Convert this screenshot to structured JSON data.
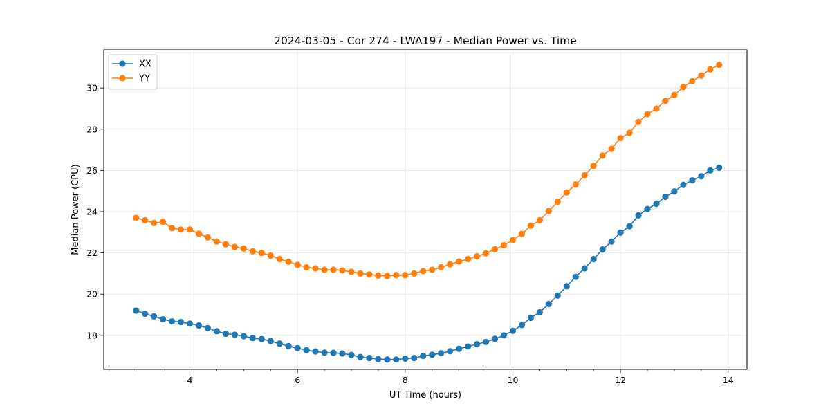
{
  "chart_data": {
    "type": "line",
    "title": "2024-03-05 - Cor 274 - LWA197 - Median Power vs. Time",
    "xlabel": "UT Time (hours)",
    "ylabel": "Median Power (CPU)",
    "xlim": [
      2.4,
      14.35
    ],
    "ylim": [
      16.35,
      31.85
    ],
    "xticks": [
      4,
      6,
      8,
      10,
      12,
      14
    ],
    "yticks": [
      18,
      20,
      22,
      24,
      26,
      28,
      30
    ],
    "grid": true,
    "legend_position": "top-left",
    "x": [
      3.0,
      3.167,
      3.333,
      3.5,
      3.667,
      3.833,
      4.0,
      4.167,
      4.333,
      4.5,
      4.667,
      4.833,
      5.0,
      5.167,
      5.333,
      5.5,
      5.667,
      5.833,
      6.0,
      6.167,
      6.333,
      6.5,
      6.667,
      6.833,
      7.0,
      7.167,
      7.333,
      7.5,
      7.667,
      7.833,
      8.0,
      8.167,
      8.333,
      8.5,
      8.667,
      8.833,
      9.0,
      9.167,
      9.333,
      9.5,
      9.667,
      9.833,
      10.0,
      10.167,
      10.333,
      10.5,
      10.667,
      10.833,
      11.0,
      11.167,
      11.333,
      11.5,
      11.667,
      11.833,
      12.0,
      12.167,
      12.333,
      12.5,
      12.667,
      12.833,
      13.0,
      13.167,
      13.333,
      13.5,
      13.667,
      13.833
    ],
    "series": [
      {
        "name": "XX",
        "color": "#1f77b4",
        "values": [
          19.2,
          19.05,
          18.92,
          18.78,
          18.68,
          18.65,
          18.57,
          18.48,
          18.35,
          18.2,
          18.08,
          18.03,
          17.96,
          17.87,
          17.82,
          17.72,
          17.6,
          17.48,
          17.38,
          17.28,
          17.22,
          17.16,
          17.15,
          17.12,
          17.05,
          16.95,
          16.9,
          16.85,
          16.83,
          16.83,
          16.87,
          16.9,
          17.0,
          17.06,
          17.13,
          17.23,
          17.35,
          17.46,
          17.57,
          17.68,
          17.83,
          18.0,
          18.22,
          18.5,
          18.85,
          19.12,
          19.52,
          19.93,
          20.38,
          20.84,
          21.25,
          21.7,
          22.17,
          22.55,
          22.98,
          23.29,
          23.82,
          24.13,
          24.38,
          24.72,
          24.98,
          25.3,
          25.52,
          25.72,
          26.0,
          26.13
        ]
      },
      {
        "name": "YY",
        "color": "#ff7f0e",
        "values": [
          23.7,
          23.58,
          23.45,
          23.5,
          23.2,
          23.13,
          23.13,
          22.93,
          22.75,
          22.55,
          22.42,
          22.29,
          22.21,
          22.08,
          22.0,
          21.87,
          21.7,
          21.57,
          21.42,
          21.3,
          21.25,
          21.18,
          21.18,
          21.15,
          21.08,
          21.0,
          20.95,
          20.9,
          20.88,
          20.92,
          20.92,
          21.0,
          21.12,
          21.18,
          21.3,
          21.45,
          21.58,
          21.7,
          21.83,
          21.98,
          22.18,
          22.37,
          22.62,
          22.92,
          23.32,
          23.58,
          24.03,
          24.48,
          24.93,
          25.32,
          25.76,
          26.22,
          26.72,
          27.05,
          27.57,
          27.82,
          28.35,
          28.73,
          29.0,
          29.37,
          29.66,
          30.05,
          30.33,
          30.6,
          30.9,
          31.12
        ]
      }
    ]
  }
}
